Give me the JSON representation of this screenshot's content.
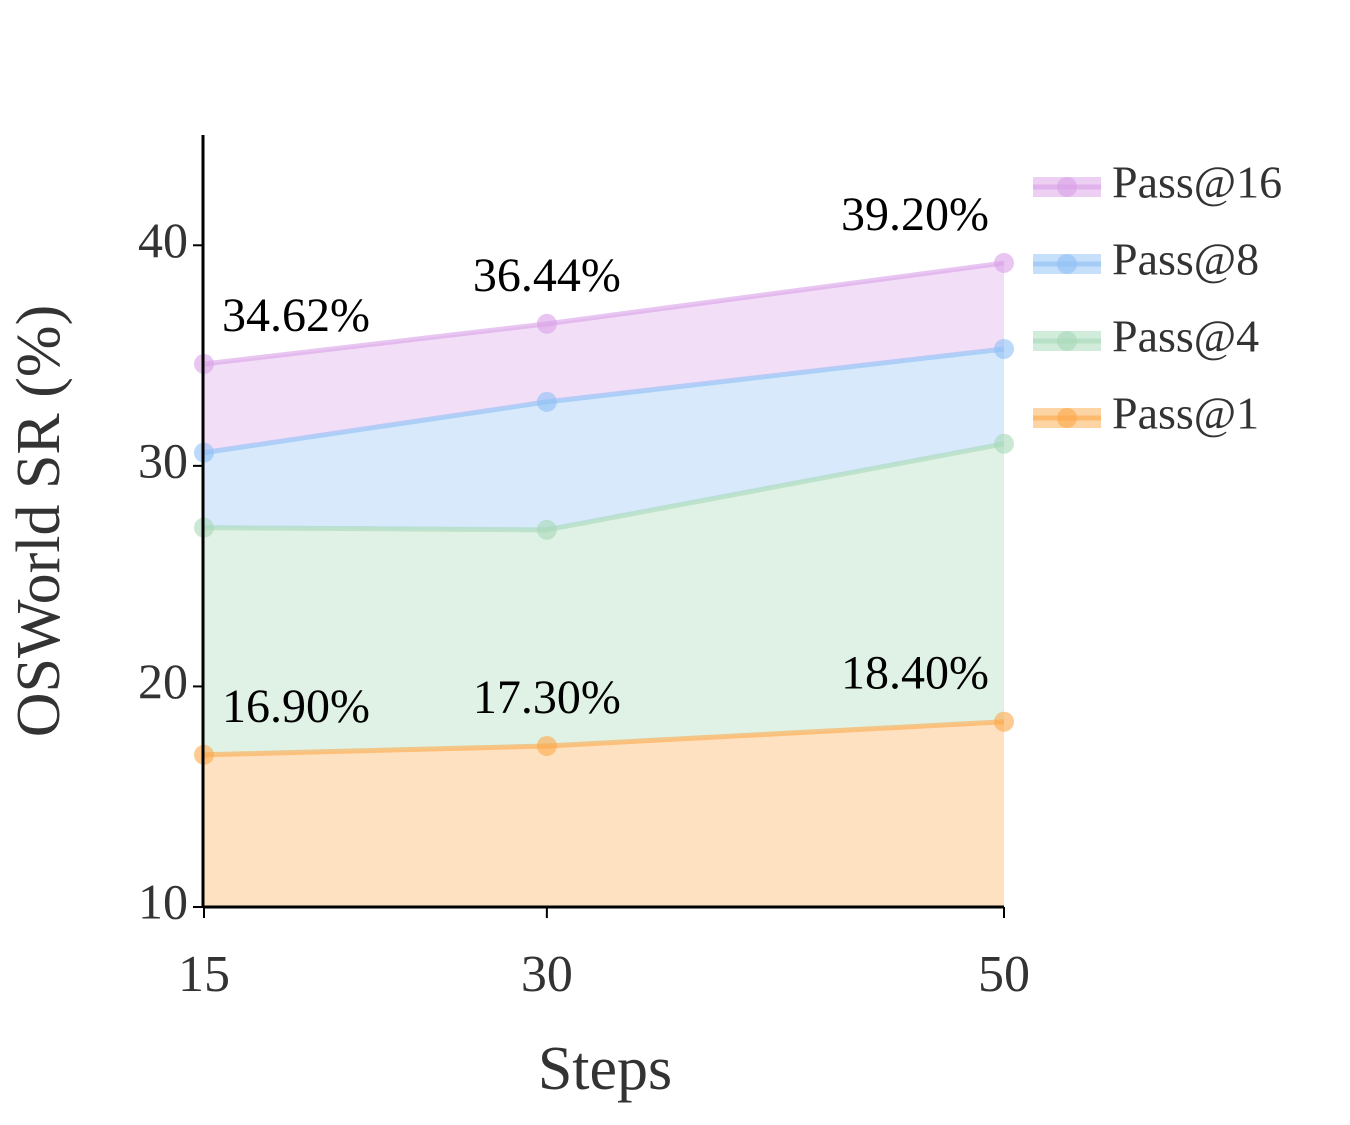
{
  "chart_data": {
    "type": "area",
    "xlabel": "Steps",
    "ylabel": "OSWorld SR (%)",
    "x": [
      15,
      30,
      50
    ],
    "xlim": [
      15,
      50
    ],
    "xticks": [
      15,
      30,
      50
    ],
    "ylim": [
      10,
      45
    ],
    "yticks": [
      10,
      20,
      30,
      40
    ],
    "series": [
      {
        "name": "Pass@16",
        "color": "#d9a0e8",
        "values": [
          34.62,
          36.44,
          39.2
        ],
        "value_labels": [
          "34.62%",
          "36.44%",
          "39.20%"
        ]
      },
      {
        "name": "Pass@8",
        "color": "#8ec0f5",
        "values": [
          30.6,
          32.9,
          35.3
        ]
      },
      {
        "name": "Pass@4",
        "color": "#a6d9b8",
        "values": [
          27.2,
          27.1,
          31.0
        ]
      },
      {
        "name": "Pass@1",
        "color": "#fca94a",
        "values": [
          16.9,
          17.3,
          18.4
        ],
        "value_labels": [
          "16.90%",
          "17.30%",
          "18.40%"
        ]
      }
    ]
  }
}
